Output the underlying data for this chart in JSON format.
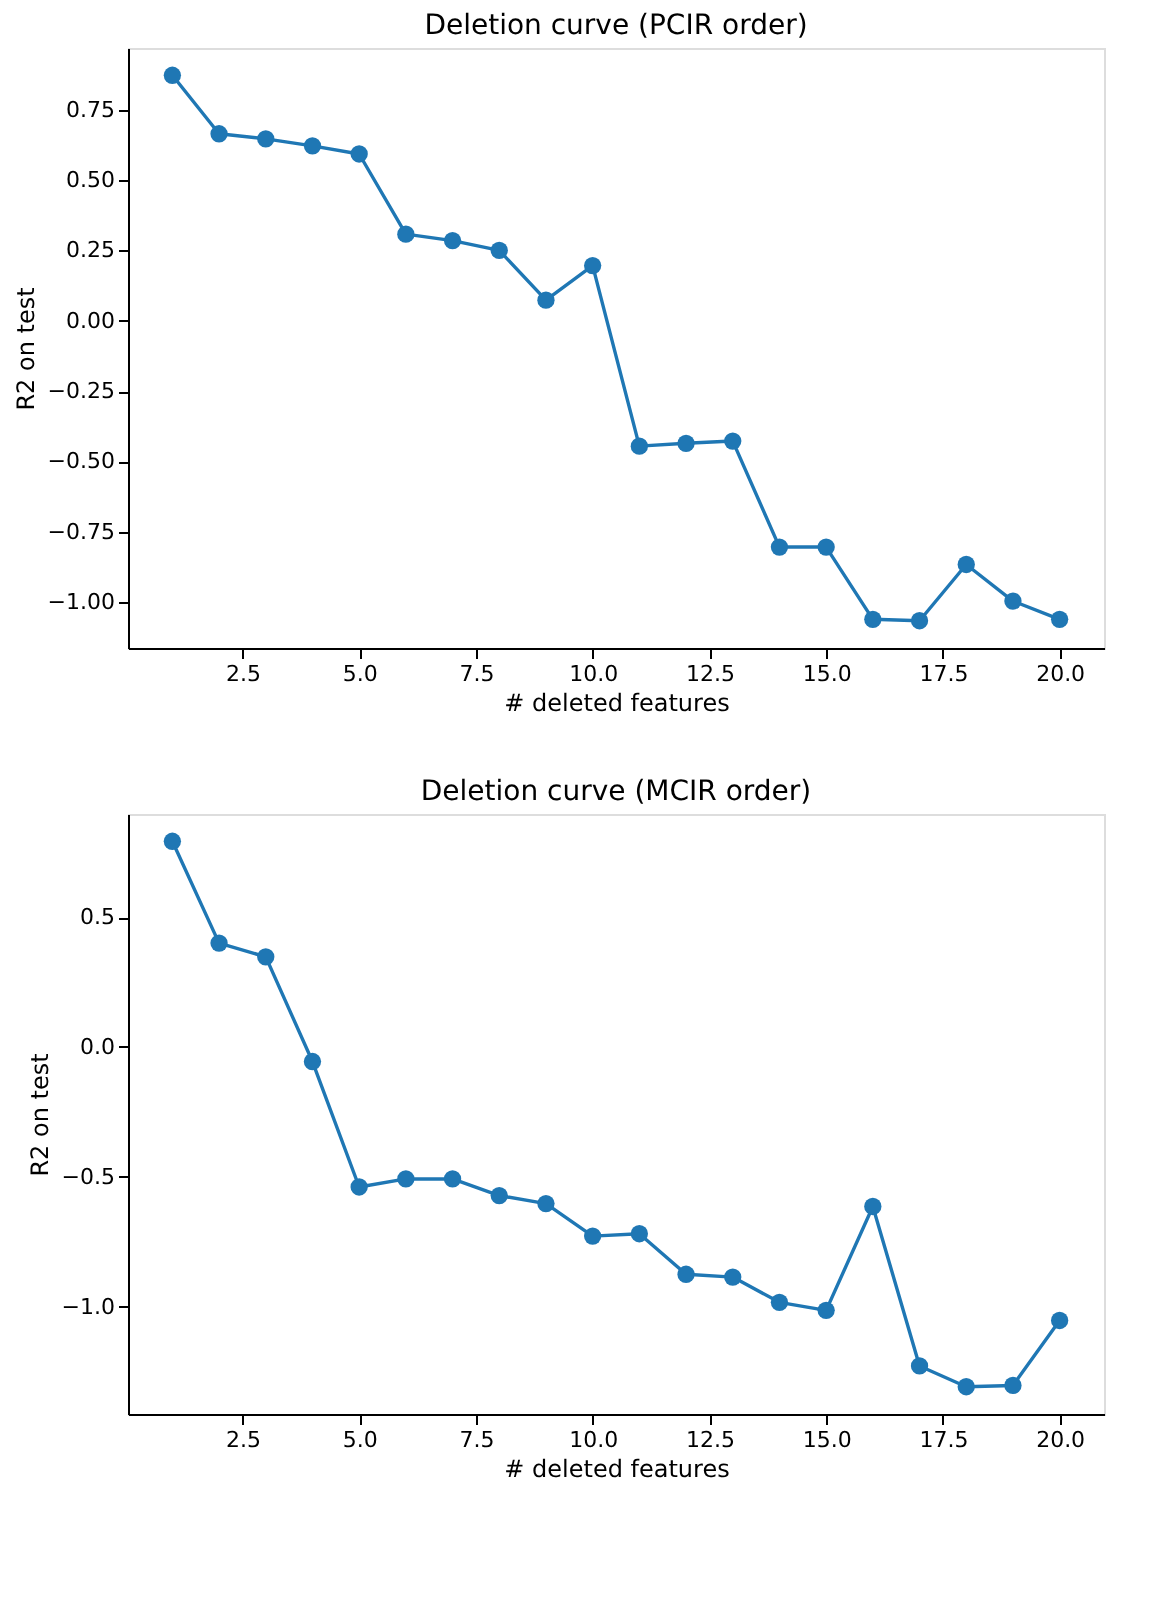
{
  "chart_data": [
    {
      "type": "line",
      "title": "Deletion curve (PCIR order)",
      "xlabel": "# deleted features",
      "ylabel": "R2 on test",
      "x": [
        1,
        2,
        3,
        4,
        5,
        6,
        7,
        8,
        9,
        10,
        11,
        12,
        13,
        14,
        15,
        16,
        17,
        18,
        19,
        20
      ],
      "series": [
        {
          "color": "#1f77b4",
          "values": [
            0.873,
            0.665,
            0.647,
            0.622,
            0.593,
            0.308,
            0.285,
            0.25,
            0.073,
            0.196,
            -0.446,
            -0.436,
            -0.428,
            -0.805,
            -0.805,
            -1.062,
            -1.067,
            -0.867,
            -0.997,
            -1.062
          ]
        }
      ],
      "xlim": [
        0.05,
        20.95
      ],
      "ylim": [
        -1.164,
        0.97
      ],
      "xticks": [
        2.5,
        {
          "value": 5,
          "label": "5.0"
        },
        7.5,
        {
          "value": 10,
          "label": "10.0"
        },
        12.5,
        {
          "value": 15,
          "label": "15.0"
        },
        17.5,
        {
          "value": 20,
          "label": "20.0"
        }
      ],
      "yticks": [
        {
          "value": -1,
          "label": "−1.00"
        },
        {
          "value": -0.75,
          "label": "−0.75"
        },
        {
          "value": -0.5,
          "label": "−0.50"
        },
        {
          "value": -0.25,
          "label": "−0.25"
        },
        {
          "value": 0,
          "label": "0.00"
        },
        {
          "value": 0.25,
          "label": "0.25"
        },
        {
          "value": 0.5,
          "label": "0.50"
        },
        0.75
      ],
      "grid": false,
      "marker": "circle",
      "line_style": "solid"
    },
    {
      "type": "line",
      "title": "Deletion curve (MCIR order)",
      "xlabel": "# deleted features",
      "ylabel": "R2 on test",
      "x": [
        1,
        2,
        3,
        4,
        5,
        6,
        7,
        8,
        9,
        10,
        11,
        12,
        13,
        14,
        15,
        16,
        17,
        18,
        19,
        20
      ],
      "series": [
        {
          "color": "#1f77b4",
          "values": [
            0.792,
            0.4,
            0.347,
            -0.056,
            -0.539,
            -0.508,
            -0.508,
            -0.572,
            -0.603,
            -0.728,
            -0.719,
            -0.875,
            -0.886,
            -0.983,
            -1.014,
            -0.614,
            -1.228,
            -1.308,
            -1.303,
            -1.053
          ]
        }
      ],
      "xlim": [
        0.05,
        20.95
      ],
      "ylim": [
        -1.413,
        0.897
      ],
      "xticks": [
        2.5,
        {
          "value": 5,
          "label": "5.0"
        },
        7.5,
        {
          "value": 10,
          "label": "10.0"
        },
        12.5,
        {
          "value": 15,
          "label": "15.0"
        },
        17.5,
        {
          "value": 20,
          "label": "20.0"
        }
      ],
      "yticks": [
        {
          "value": -1,
          "label": "−1.0"
        },
        {
          "value": -0.5,
          "label": "−0.5"
        },
        {
          "value": 0,
          "label": "0.0"
        },
        0.5
      ],
      "grid": false,
      "marker": "circle",
      "line_style": "solid"
    }
  ]
}
